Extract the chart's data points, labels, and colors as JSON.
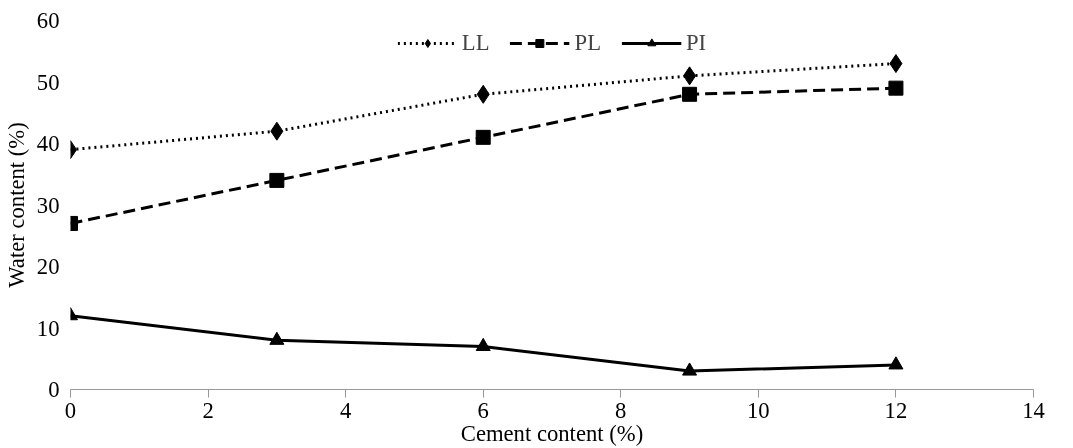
{
  "chart_data": {
    "type": "line",
    "xlabel": "Cement content (%)",
    "ylabel": "Water content (%)",
    "x": [
      0,
      3,
      6,
      9,
      12
    ],
    "series": [
      {
        "name": "LL",
        "color": "#000000",
        "values": [
          39,
          42,
          48,
          51,
          53
        ],
        "marker": "diamond",
        "line_style": "dotted"
      },
      {
        "name": "PL",
        "color": "#000000",
        "values": [
          27,
          34,
          41,
          48,
          49
        ],
        "marker": "square",
        "line_style": "dashed"
      },
      {
        "name": "PI",
        "color": "#000000",
        "values": [
          12,
          8,
          7,
          3,
          4
        ],
        "marker": "triangle",
        "line_style": "solid"
      }
    ],
    "xlim": [
      0,
      14
    ],
    "xticks": [
      0,
      2,
      4,
      6,
      8,
      10,
      12,
      14
    ],
    "ylim": [
      0,
      60
    ],
    "yticks": [
      0,
      10,
      20,
      30,
      40,
      50,
      60
    ],
    "grid": false,
    "legend": "top"
  }
}
